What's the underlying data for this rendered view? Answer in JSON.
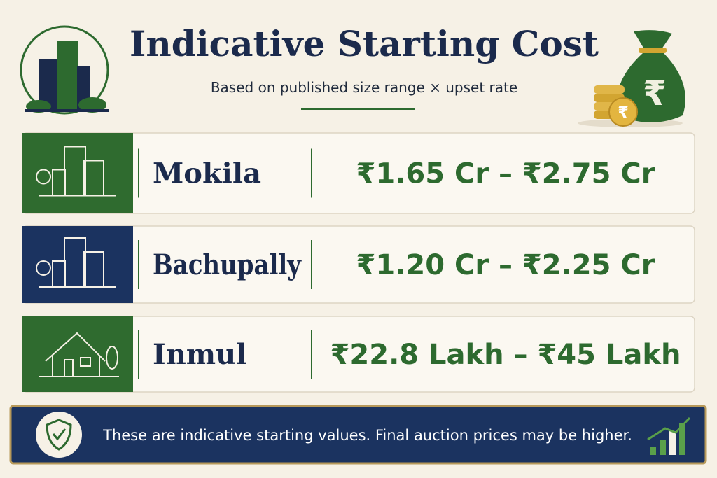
{
  "header": {
    "title": "Indicative Starting Cost",
    "subtitle": "Based on published size range × upset rate"
  },
  "rows": [
    {
      "location": "Mokila",
      "price": "₹1.65 Cr – ₹2.75 Cr"
    },
    {
      "location": "Bachupally",
      "price": "₹1.20 Cr – ₹2.25 Cr"
    },
    {
      "location": "Inmul",
      "price": "₹22.8 Lakh – ₹45 Lakh"
    }
  ],
  "footer": {
    "note": "These are indicative starting values. Final auction prices may be higher."
  }
}
